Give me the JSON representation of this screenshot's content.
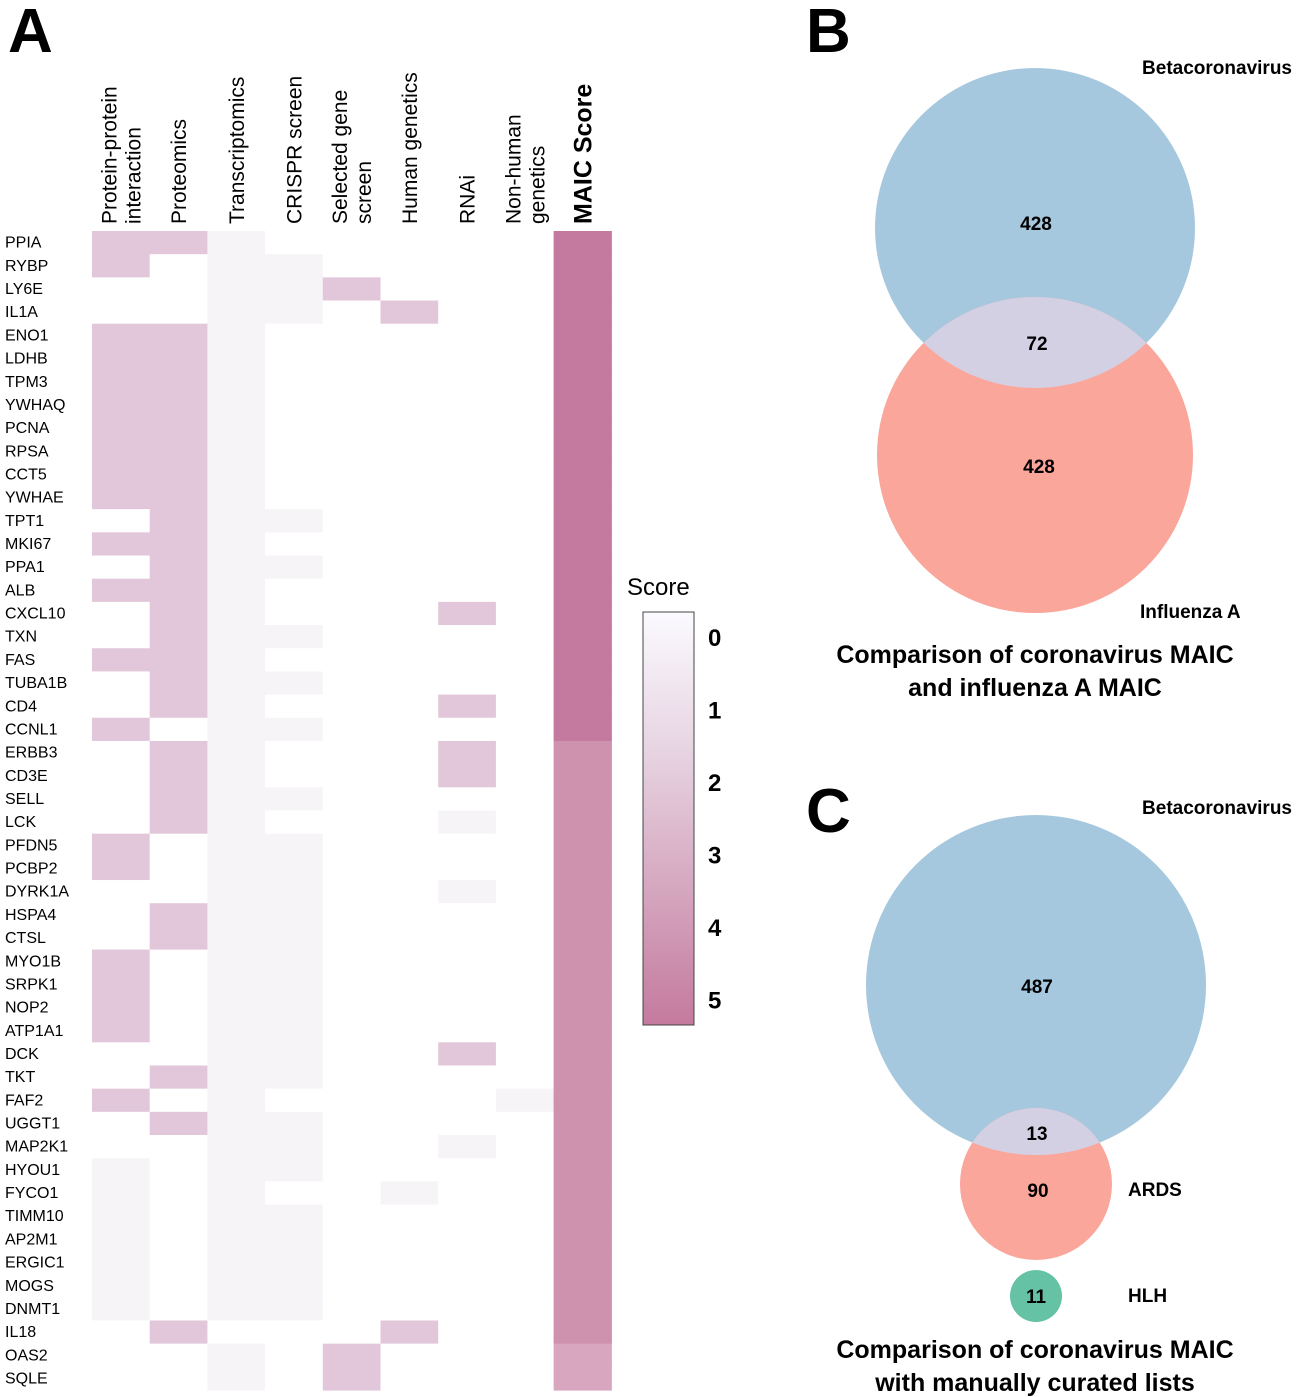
{
  "chart_data": [
    {
      "panel": "A",
      "type": "heatmap",
      "columns": [
        "Protein-protein interaction",
        "Proteomics",
        "Transcriptomics",
        "CRISPR screen",
        "Selected gene screen",
        "Human genetics",
        "RNAi",
        "Non-human genetics",
        "MAIC Score"
      ],
      "column_labels": [
        [
          "Protein-protein",
          "interaction"
        ],
        [
          "Proteomics"
        ],
        [
          "Transcriptomics"
        ],
        [
          "CRISPR screen"
        ],
        [
          "Selected gene",
          "screen"
        ],
        [
          "Human genetics"
        ],
        [
          "RNAi"
        ],
        [
          "Non-human",
          "genetics"
        ],
        [
          "MAIC Score"
        ]
      ],
      "rows": [
        "PPIA",
        "RYBP",
        "LY6E",
        "IL1A",
        "ENO1",
        "LDHB",
        "TPM3",
        "YWHAQ",
        "PCNA",
        "RPSA",
        "CCT5",
        "YWHAE",
        "TPT1",
        "MKI67",
        "PPA1",
        "ALB",
        "CXCL10",
        "TXN",
        "FAS",
        "TUBA1B",
        "CD4",
        "CCNL1",
        "ERBB3",
        "CD3E",
        "SELL",
        "LCK",
        "PFDN5",
        "PCBP2",
        "DYRK1A",
        "HSPA4",
        "CTSL",
        "MYO1B",
        "SRPK1",
        "NOP2",
        "ATP1A1",
        "DCK",
        "TKT",
        "FAF2",
        "UGGT1",
        "MAP2K1",
        "HYOU1",
        "FYCO1",
        "TIMM10",
        "AP2M1",
        "ERGIC1",
        "MOGS",
        "DNMT1",
        "IL18",
        "OAS2",
        "SQLE"
      ],
      "values": [
        [
          2,
          2,
          1,
          0,
          0,
          0,
          0,
          0,
          5
        ],
        [
          2,
          0,
          1,
          1,
          0,
          0,
          0,
          0,
          5
        ],
        [
          0,
          0,
          1,
          1,
          2,
          0,
          0,
          0,
          5
        ],
        [
          0,
          0,
          1,
          1,
          0,
          2,
          0,
          0,
          5
        ],
        [
          2,
          2,
          1,
          0,
          0,
          0,
          0,
          0,
          5
        ],
        [
          2,
          2,
          1,
          0,
          0,
          0,
          0,
          0,
          5
        ],
        [
          2,
          2,
          1,
          0,
          0,
          0,
          0,
          0,
          5
        ],
        [
          2,
          2,
          1,
          0,
          0,
          0,
          0,
          0,
          5
        ],
        [
          2,
          2,
          1,
          0,
          0,
          0,
          0,
          0,
          5
        ],
        [
          2,
          2,
          1,
          0,
          0,
          0,
          0,
          0,
          5
        ],
        [
          2,
          2,
          1,
          0,
          0,
          0,
          0,
          0,
          5
        ],
        [
          2,
          2,
          1,
          0,
          0,
          0,
          0,
          0,
          5
        ],
        [
          0,
          2,
          1,
          1,
          0,
          0,
          0,
          0,
          5
        ],
        [
          2,
          2,
          1,
          0,
          0,
          0,
          0,
          0,
          5
        ],
        [
          0,
          2,
          1,
          1,
          0,
          0,
          0,
          0,
          5
        ],
        [
          2,
          2,
          1,
          0,
          0,
          0,
          0,
          0,
          5
        ],
        [
          0,
          2,
          1,
          0,
          0,
          0,
          2,
          0,
          5
        ],
        [
          0,
          2,
          1,
          1,
          0,
          0,
          0,
          0,
          5
        ],
        [
          2,
          2,
          1,
          0,
          0,
          0,
          0,
          0,
          5
        ],
        [
          0,
          2,
          1,
          1,
          0,
          0,
          0,
          0,
          5
        ],
        [
          0,
          2,
          1,
          0,
          0,
          0,
          2,
          0,
          5
        ],
        [
          2,
          0,
          1,
          1,
          0,
          0,
          0,
          0,
          5
        ],
        [
          0,
          2,
          1,
          0,
          0,
          0,
          2,
          0,
          4
        ],
        [
          0,
          2,
          1,
          0,
          0,
          0,
          2,
          0,
          4
        ],
        [
          0,
          2,
          1,
          1,
          0,
          0,
          0,
          0,
          4
        ],
        [
          0,
          2,
          1,
          0,
          0,
          0,
          1,
          0,
          4
        ],
        [
          2,
          0,
          1,
          1,
          0,
          0,
          0,
          0,
          4
        ],
        [
          2,
          0,
          1,
          1,
          0,
          0,
          0,
          0,
          4
        ],
        [
          0,
          0,
          1,
          1,
          0,
          0,
          1,
          0,
          4
        ],
        [
          0,
          2,
          1,
          1,
          0,
          0,
          0,
          0,
          4
        ],
        [
          0,
          2,
          1,
          1,
          0,
          0,
          0,
          0,
          4
        ],
        [
          2,
          0,
          1,
          1,
          0,
          0,
          0,
          0,
          4
        ],
        [
          2,
          0,
          1,
          1,
          0,
          0,
          0,
          0,
          4
        ],
        [
          2,
          0,
          1,
          1,
          0,
          0,
          0,
          0,
          4
        ],
        [
          2,
          0,
          1,
          1,
          0,
          0,
          0,
          0,
          4
        ],
        [
          0,
          0,
          1,
          1,
          0,
          0,
          2,
          0,
          4
        ],
        [
          0,
          2,
          1,
          1,
          0,
          0,
          0,
          0,
          4
        ],
        [
          2,
          0,
          1,
          0,
          0,
          0,
          0,
          1,
          4
        ],
        [
          0,
          2,
          1,
          1,
          0,
          0,
          0,
          0,
          4
        ],
        [
          0,
          0,
          1,
          1,
          0,
          0,
          1,
          0,
          4
        ],
        [
          1,
          0,
          1,
          1,
          0,
          0,
          0,
          0,
          4
        ],
        [
          1,
          0,
          1,
          0,
          0,
          1,
          0,
          0,
          4
        ],
        [
          1,
          0,
          1,
          1,
          0,
          0,
          0,
          0,
          4
        ],
        [
          1,
          0,
          1,
          1,
          0,
          0,
          0,
          0,
          4
        ],
        [
          1,
          0,
          1,
          1,
          0,
          0,
          0,
          0,
          4
        ],
        [
          1,
          0,
          1,
          1,
          0,
          0,
          0,
          0,
          4
        ],
        [
          1,
          0,
          1,
          1,
          0,
          0,
          0,
          0,
          4
        ],
        [
          0,
          2,
          0,
          0,
          0,
          2,
          0,
          0,
          4
        ],
        [
          0,
          0,
          1,
          0,
          2,
          0,
          0,
          0,
          3
        ],
        [
          0,
          0,
          1,
          0,
          2,
          0,
          0,
          0,
          3
        ]
      ],
      "colorbar": {
        "title": "Score",
        "ticks": [
          "0",
          "1",
          "2",
          "3",
          "4",
          "5"
        ],
        "range": [
          0,
          5
        ],
        "low_color": "#ffffff",
        "high_color": "#c47a9e"
      }
    },
    {
      "panel": "B",
      "type": "venn",
      "sets": [
        {
          "label": "Betacoronavirus",
          "only": "428",
          "color": "#a6c8de"
        },
        {
          "label": "Influenza A",
          "only": "428",
          "color": "#faa69b"
        }
      ],
      "overlap": "72",
      "overlap_color": "#d4d0e4",
      "caption_lines": [
        "Comparison of coronavirus MAIC",
        "and influenza A MAIC"
      ]
    },
    {
      "panel": "C",
      "type": "venn",
      "sets": [
        {
          "label": "Betacoronavirus",
          "only": "487",
          "color": "#a6c8de"
        },
        {
          "label": "ARDS",
          "only": "90",
          "color": "#faa69b"
        },
        {
          "label": "HLH",
          "only": "11",
          "color": "#66c2a5"
        }
      ],
      "overlap": "13",
      "overlap_color": "#d4d0e4",
      "caption_lines": [
        "Comparison of coronavirus MAIC",
        "with manually curated lists"
      ]
    }
  ]
}
